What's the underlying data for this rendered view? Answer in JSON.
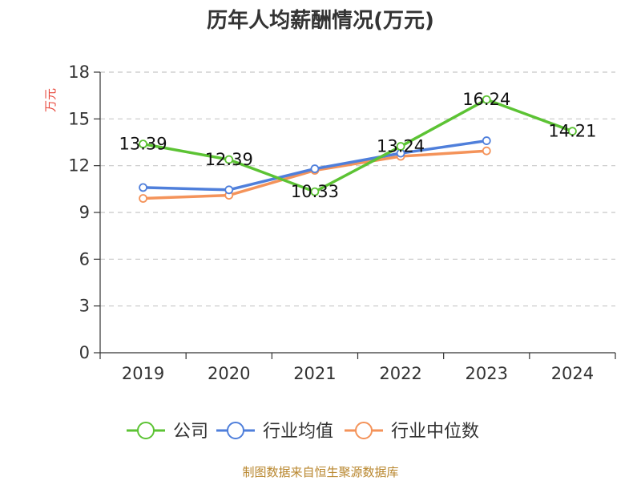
{
  "chart_data": {
    "type": "line",
    "title": "历年人均薪酬情况(万元)",
    "ylabel": "万元",
    "xlabel": "",
    "categories": [
      "2019",
      "2020",
      "2021",
      "2022",
      "2023",
      "2024"
    ],
    "ylim": [
      0,
      18
    ],
    "yticks": [
      0,
      3,
      6,
      9,
      12,
      15,
      18
    ],
    "grid": true,
    "legend_position": "bottom",
    "series": [
      {
        "name": "公司",
        "color": "#5cc334",
        "values": [
          13.39,
          12.39,
          10.33,
          13.24,
          16.24,
          14.21
        ],
        "labels": [
          "13.39",
          "12.39",
          "10.33",
          "13.24",
          "16.24",
          "14.21"
        ]
      },
      {
        "name": "行业均值",
        "color": "#4f7fdb",
        "values": [
          10.6,
          10.45,
          11.8,
          12.8,
          13.6,
          null
        ],
        "labels": []
      },
      {
        "name": "行业中位数",
        "color": "#f4935a",
        "values": [
          9.9,
          10.1,
          11.7,
          12.6,
          12.95,
          null
        ],
        "labels": []
      }
    ]
  },
  "source": "制图数据来自恒生聚源数据库"
}
